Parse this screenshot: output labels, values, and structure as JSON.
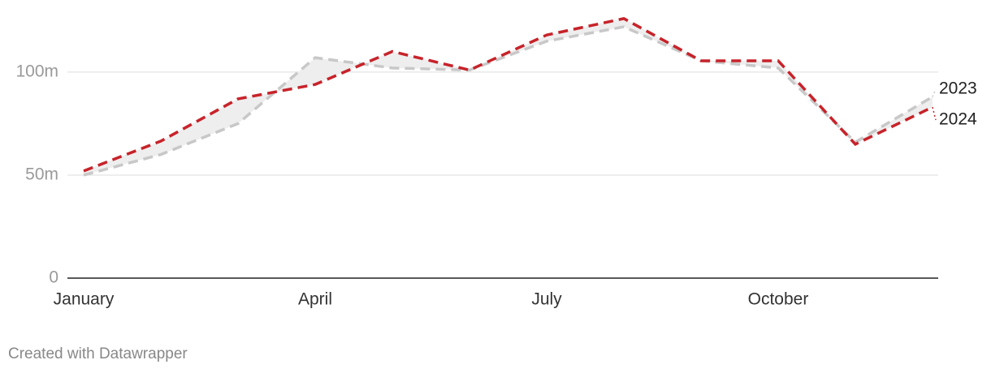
{
  "chart_data": {
    "type": "line",
    "categories": [
      "January",
      null,
      null,
      "April",
      null,
      null,
      "July",
      null,
      null,
      "October",
      null,
      null
    ],
    "series": [
      {
        "name": "2023",
        "color": "#c8c8c8",
        "values": [
          50,
          60,
          75,
          107,
          102,
          101,
          115,
          122,
          105.5,
          102,
          66,
          88
        ]
      },
      {
        "name": "2024",
        "color": "#c7232a",
        "values": [
          52,
          66.5,
          87,
          94,
          110,
          101,
          118,
          126,
          105.5,
          105.5,
          65,
          83
        ]
      }
    ],
    "ylim": [
      0,
      135
    ],
    "yticks": [
      0,
      {
        "value": 50,
        "label": "50m"
      },
      {
        "value": 100,
        "label": "100m"
      }
    ],
    "grid": true,
    "credit": "Created with Datawrapper"
  }
}
